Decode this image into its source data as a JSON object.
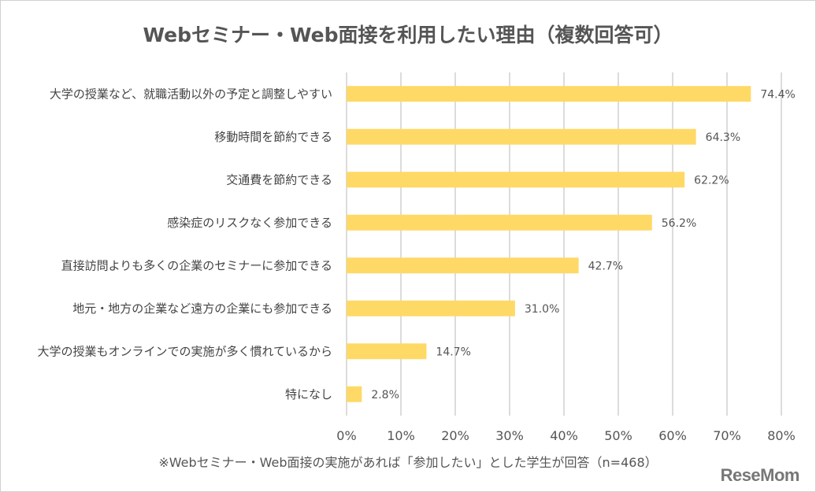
{
  "chart_data": {
    "type": "bar",
    "orientation": "horizontal",
    "title": "Webセミナー・Web面接を利用したい理由（複数回答可）",
    "categories": [
      "大学の授業など、就職活動以外の予定と調整しやすい",
      "移動時間を節約できる",
      "交通費を節約できる",
      "感染症のリスクなく参加できる",
      "直接訪問よりも多くの企業のセミナーに参加できる",
      "地元・地方の企業など遠方の企業にも参加できる",
      "大学の授業もオンラインでの実施が多く慣れているから",
      "特になし"
    ],
    "values": [
      74.4,
      64.3,
      62.2,
      56.2,
      42.7,
      31.0,
      14.7,
      2.8
    ],
    "value_labels": [
      "74.4%",
      "64.3%",
      "62.2%",
      "56.2%",
      "42.7%",
      "31.0%",
      "14.7%",
      "2.8%"
    ],
    "xlim": [
      0,
      80
    ],
    "xticks": [
      "0%",
      "10%",
      "20%",
      "30%",
      "40%",
      "50%",
      "60%",
      "70%",
      "80%"
    ],
    "grid": true,
    "bar_color": "#FFD966",
    "note": "※Webセミナー・Web面接の実施があれば「参加したい」とした学生が回答（n=468）"
  },
  "logo": "ReseMom"
}
